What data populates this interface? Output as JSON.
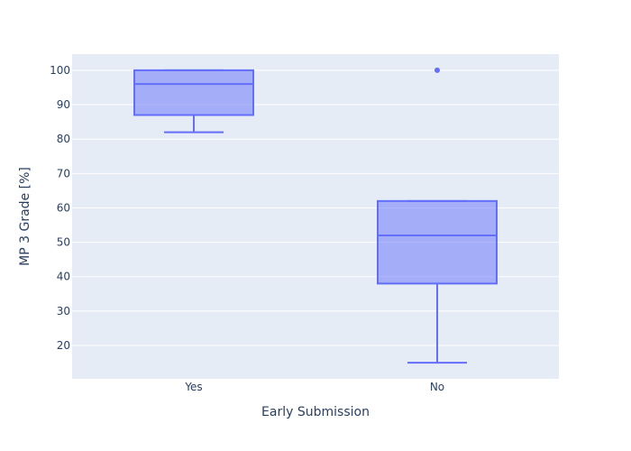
{
  "chart_data": {
    "type": "box",
    "xlabel": "Early Submission",
    "ylabel": "MP 3 Grade [%]",
    "categories": [
      "Yes",
      "No"
    ],
    "boxes": [
      {
        "category": "Yes",
        "min": 82,
        "q1": 87,
        "median": 96,
        "q3": 100,
        "max": 100,
        "outliers": []
      },
      {
        "category": "No",
        "min": 15,
        "q1": 38,
        "median": 52,
        "q3": 62,
        "max": 62,
        "outliers": [
          100
        ]
      }
    ],
    "yticks": [
      20,
      30,
      40,
      50,
      60,
      70,
      80,
      90,
      100
    ],
    "ylim": [
      10.3,
      104.7
    ],
    "grid": true,
    "legend": "none",
    "colors": {
      "plot_bg": "#e5ecf6",
      "grid": "#ffffff",
      "box_line": "#636efa",
      "box_fill": "rgba(99,110,250,0.5)",
      "text": "#2a3f5f"
    }
  }
}
